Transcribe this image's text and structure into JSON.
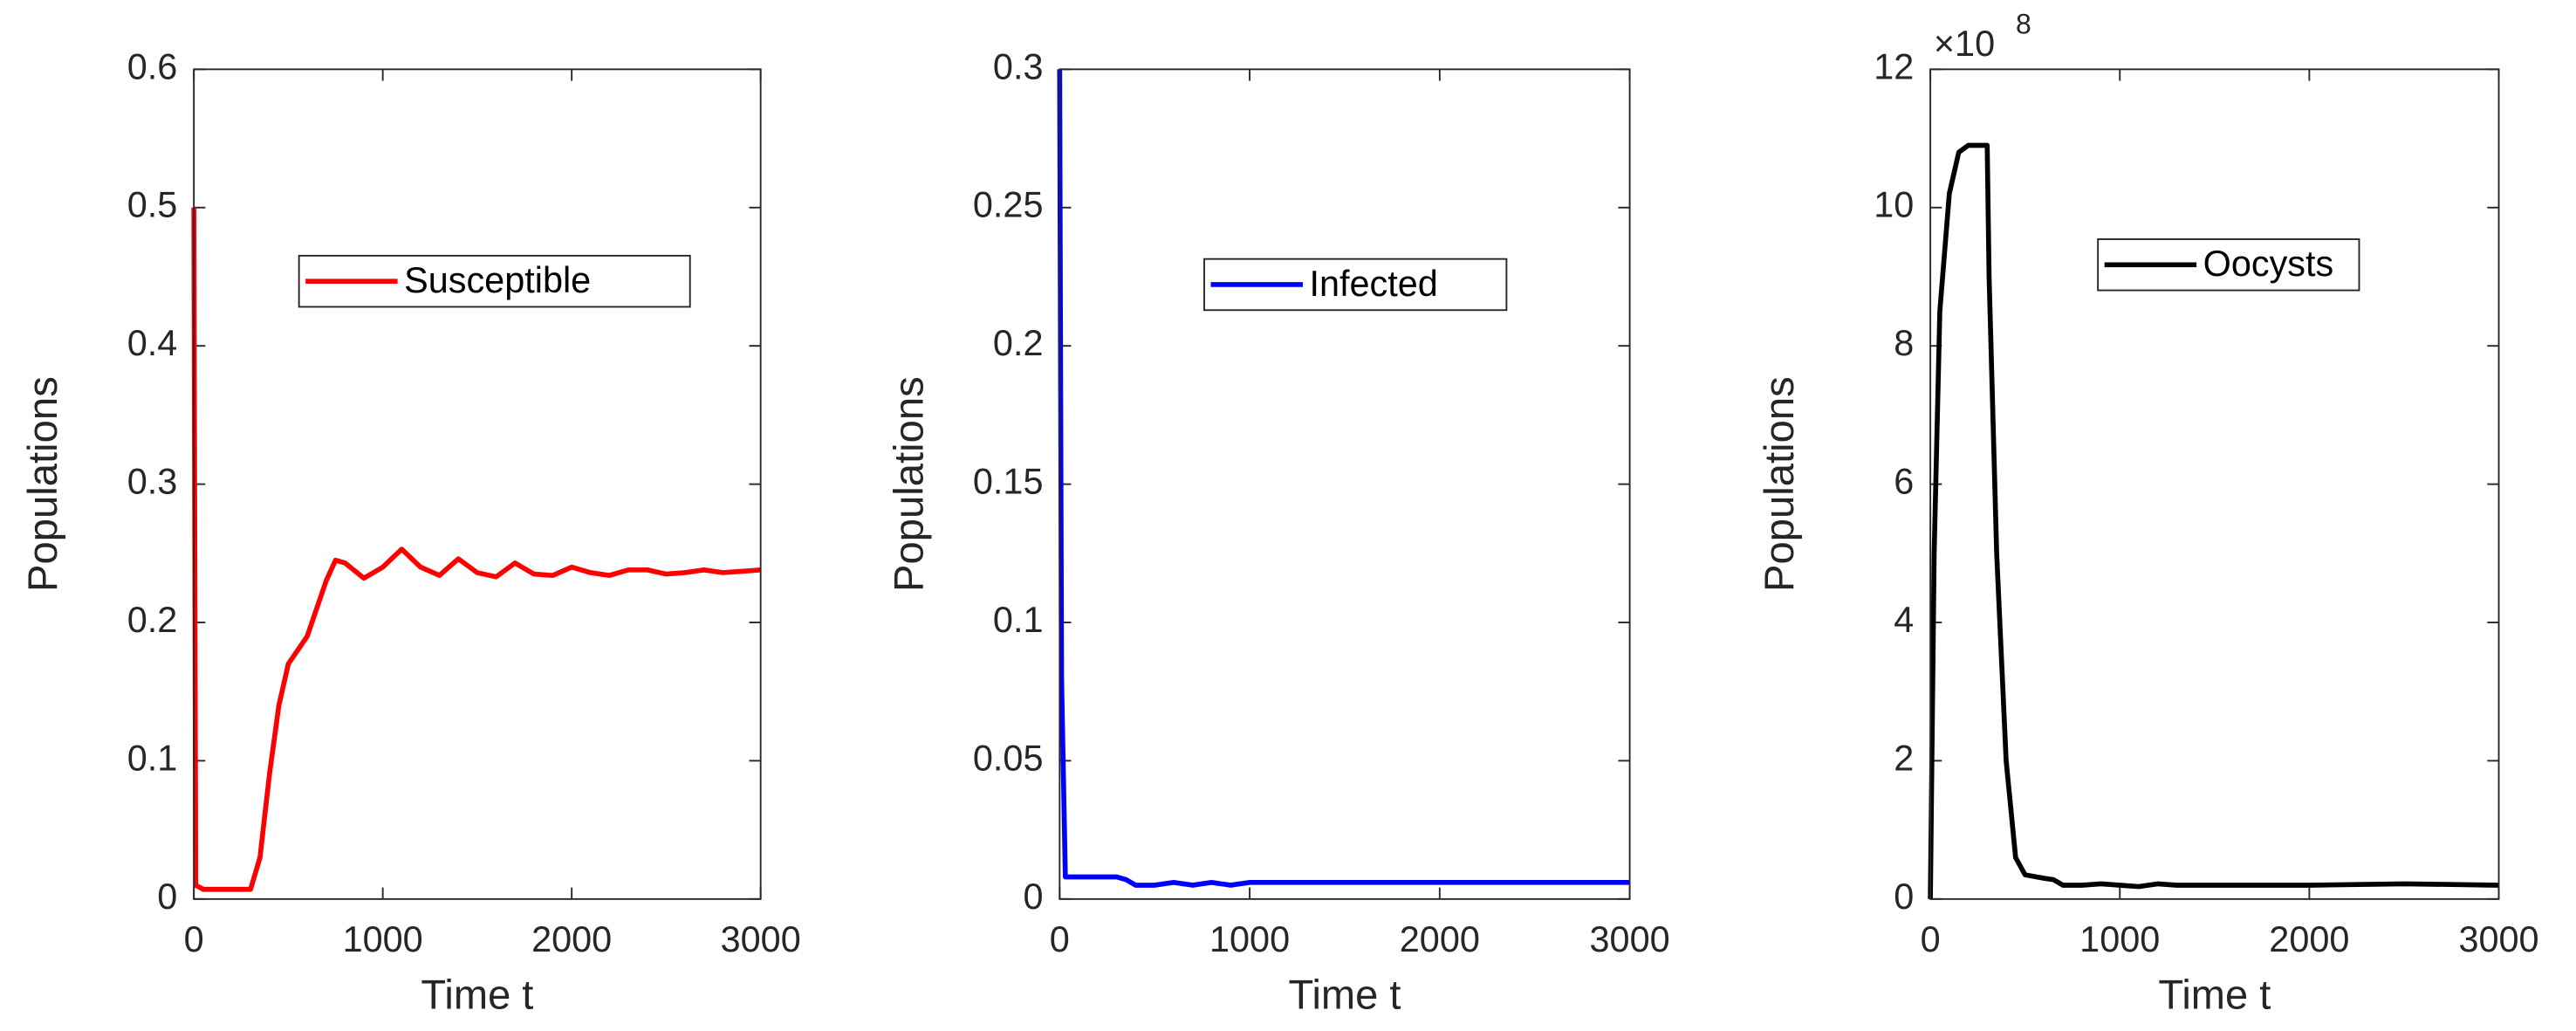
{
  "chart_data": [
    {
      "type": "line",
      "xlabel": "Time t",
      "ylabel": "Populations",
      "xlim": [
        0,
        3000
      ],
      "ylim": [
        0,
        0.6
      ],
      "xticks": [
        0,
        1000,
        2000,
        3000
      ],
      "yticks": [
        0,
        0.1,
        0.2,
        0.3,
        0.4,
        0.5,
        0.6
      ],
      "legend": "upper center",
      "series": [
        {
          "name": "Susceptible",
          "color": "#ff0000",
          "x": [
            0,
            10,
            50,
            300,
            350,
            400,
            450,
            500,
            550,
            600,
            650,
            700,
            750,
            800,
            900,
            1000,
            1100,
            1200,
            1300,
            1400,
            1500,
            1600,
            1700,
            1800,
            1900,
            2000,
            2100,
            2200,
            2300,
            2400,
            2500,
            2600,
            2700,
            2800,
            2900,
            3000
          ],
          "values": [
            0.5,
            0.01,
            0.007,
            0.007,
            0.03,
            0.09,
            0.14,
            0.17,
            0.18,
            0.19,
            0.21,
            0.23,
            0.245,
            0.243,
            0.232,
            0.24,
            0.253,
            0.24,
            0.234,
            0.246,
            0.236,
            0.233,
            0.243,
            0.235,
            0.234,
            0.24,
            0.236,
            0.234,
            0.238,
            0.238,
            0.235,
            0.236,
            0.238,
            0.236,
            0.237,
            0.238
          ]
        }
      ]
    },
    {
      "type": "line",
      "xlabel": "Time t",
      "ylabel": "Populations",
      "xlim": [
        0,
        3000
      ],
      "ylim": [
        0,
        0.3
      ],
      "xticks": [
        0,
        1000,
        2000,
        3000
      ],
      "yticks": [
        0,
        0.05,
        0.1,
        0.15,
        0.2,
        0.25,
        0.3
      ],
      "legend": "upper center",
      "series": [
        {
          "name": "Infected",
          "color": "#0000ff",
          "x": [
            0,
            10,
            30,
            300,
            350,
            400,
            500,
            600,
            700,
            800,
            900,
            1000,
            1200,
            1500,
            2000,
            2500,
            3000
          ],
          "values": [
            0.3,
            0.08,
            0.008,
            0.008,
            0.007,
            0.005,
            0.005,
            0.006,
            0.005,
            0.006,
            0.005,
            0.006,
            0.006,
            0.006,
            0.006,
            0.006,
            0.006
          ]
        }
      ]
    },
    {
      "type": "line",
      "xlabel": "Time t",
      "ylabel": "Populations",
      "y_scale_base": "×10",
      "y_scale_exponent": "8",
      "xlim": [
        0,
        3000
      ],
      "ylim": [
        0,
        12
      ],
      "xticks": [
        0,
        1000,
        2000,
        3000
      ],
      "yticks": [
        0,
        2,
        4,
        6,
        8,
        10,
        12
      ],
      "legend": "upper center",
      "series": [
        {
          "name": "Oocysts",
          "color": "#000000",
          "x": [
            0,
            20,
            50,
            100,
            150,
            200,
            300,
            310,
            350,
            400,
            450,
            500,
            600,
            650,
            700,
            800,
            900,
            1000,
            1100,
            1200,
            1300,
            1500,
            2000,
            2500,
            3000
          ],
          "values": [
            0,
            5,
            8.5,
            10.2,
            10.8,
            10.9,
            10.9,
            9,
            5,
            2,
            0.6,
            0.35,
            0.3,
            0.28,
            0.2,
            0.2,
            0.22,
            0.2,
            0.18,
            0.22,
            0.2,
            0.2,
            0.2,
            0.22,
            0.2
          ]
        }
      ]
    }
  ]
}
